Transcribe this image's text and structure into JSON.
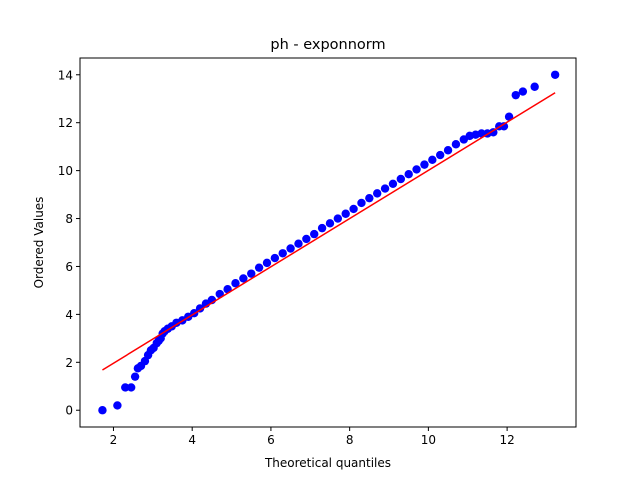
{
  "chart_data": {
    "type": "scatter",
    "title": "ph - exponnorm",
    "xlabel": "Theoretical quantiles",
    "ylabel": "Ordered Values",
    "xlim": [
      1.15,
      13.75
    ],
    "ylim": [
      -0.7,
      14.7
    ],
    "xticks": [
      2,
      4,
      6,
      8,
      10,
      12
    ],
    "yticks": [
      0,
      2,
      4,
      6,
      8,
      10,
      12,
      14
    ],
    "grid": false,
    "colors": {
      "points": "#0000ff",
      "fit_line": "#ff0000"
    },
    "series": [
      {
        "kind": "points",
        "x": [
          1.72,
          2.1,
          2.3,
          2.45,
          2.55,
          2.62,
          2.7,
          2.8,
          2.88,
          2.95,
          3.02,
          3.1,
          3.15,
          3.2,
          3.25,
          3.3,
          3.38,
          3.48,
          3.6,
          3.75,
          3.9,
          4.05,
          4.2,
          4.35,
          4.5,
          4.7,
          4.9,
          5.1,
          5.3,
          5.5,
          5.7,
          5.9,
          6.1,
          6.3,
          6.5,
          6.7,
          6.9,
          7.1,
          7.3,
          7.5,
          7.7,
          7.9,
          8.1,
          8.3,
          8.5,
          8.7,
          8.9,
          9.1,
          9.3,
          9.5,
          9.7,
          9.9,
          10.1,
          10.3,
          10.5,
          10.7,
          10.9,
          11.05,
          11.2,
          11.35,
          11.5,
          11.65,
          11.8,
          11.92,
          12.05,
          12.22,
          12.4,
          12.7,
          13.22
        ],
        "y": [
          0.0,
          0.2,
          0.95,
          0.95,
          1.4,
          1.75,
          1.85,
          2.05,
          2.3,
          2.5,
          2.6,
          2.8,
          2.9,
          3.0,
          3.2,
          3.3,
          3.4,
          3.5,
          3.65,
          3.75,
          3.9,
          4.05,
          4.25,
          4.45,
          4.6,
          4.85,
          5.05,
          5.3,
          5.5,
          5.7,
          5.95,
          6.15,
          6.35,
          6.55,
          6.75,
          6.95,
          7.15,
          7.35,
          7.6,
          7.8,
          8.0,
          8.2,
          8.4,
          8.65,
          8.85,
          9.05,
          9.25,
          9.45,
          9.65,
          9.85,
          10.05,
          10.25,
          10.45,
          10.65,
          10.85,
          11.1,
          11.3,
          11.45,
          11.5,
          11.55,
          11.55,
          11.6,
          11.85,
          11.85,
          12.25,
          13.15,
          13.3,
          13.5,
          14.0
        ]
      },
      {
        "kind": "line",
        "x": [
          1.72,
          13.22
        ],
        "y": [
          1.68,
          13.25
        ]
      }
    ]
  }
}
